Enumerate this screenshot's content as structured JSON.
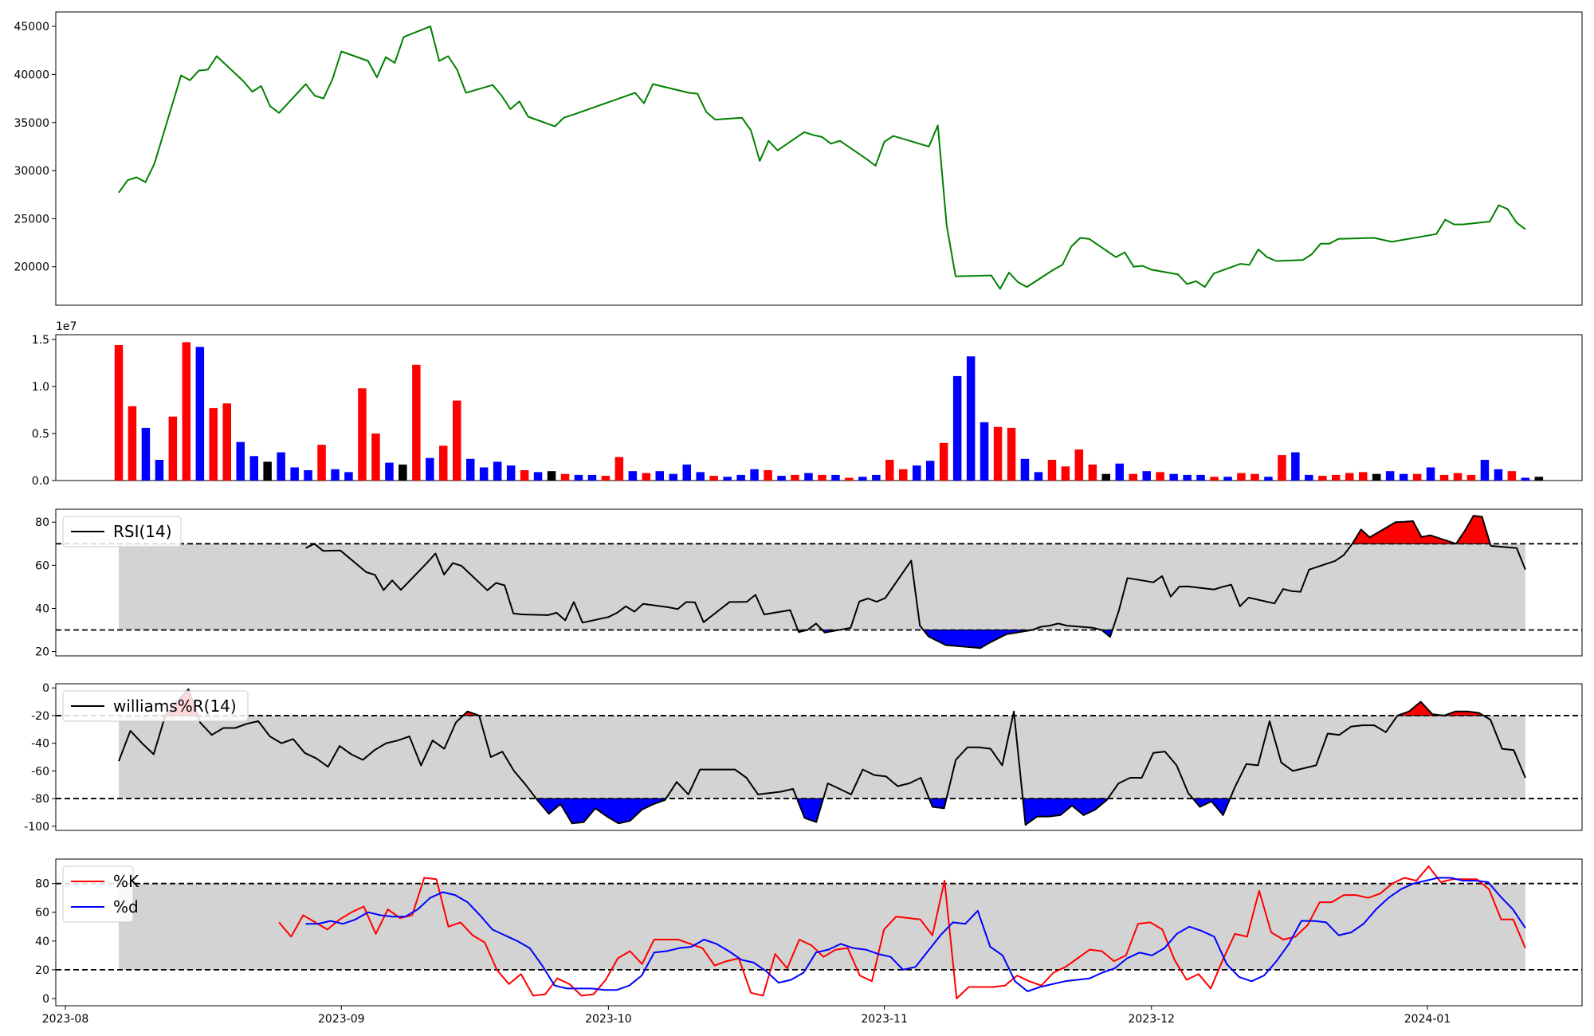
{
  "chart_data": [
    {
      "type": "line",
      "series": [
        {
          "color": "#008000",
          "x": [
            "2023-08-07",
            "2023-08-08",
            "2023-08-09",
            "2023-08-10",
            "2023-08-11",
            "2023-08-14",
            "2023-08-15",
            "2023-08-16",
            "2023-08-17",
            "2023-08-18",
            "2023-08-21",
            "2023-08-22",
            "2023-08-23",
            "2023-08-24",
            "2023-08-25",
            "2023-08-28",
            "2023-08-29",
            "2023-08-30",
            "2023-08-31",
            "2023-09-01",
            "2023-09-04",
            "2023-09-05",
            "2023-09-06",
            "2023-09-07",
            "2023-09-08",
            "2023-09-11",
            "2023-09-12",
            "2023-09-13",
            "2023-09-14",
            "2023-09-15",
            "2023-09-18",
            "2023-09-19",
            "2023-09-20",
            "2023-09-21",
            "2023-09-22",
            "2023-09-25",
            "2023-09-26",
            "2023-09-27",
            "2023-10-04",
            "2023-10-05",
            "2023-10-06",
            "2023-10-10",
            "2023-10-11",
            "2023-10-12",
            "2023-10-13",
            "2023-10-16",
            "2023-10-17",
            "2023-10-18",
            "2023-10-19",
            "2023-10-20",
            "2023-10-23",
            "2023-10-24",
            "2023-10-25",
            "2023-10-26",
            "2023-10-27",
            "2023-10-30",
            "2023-10-31",
            "2023-11-01",
            "2023-11-02",
            "2023-11-06",
            "2023-11-07",
            "2023-11-08",
            "2023-11-09",
            "2023-11-13",
            "2023-11-14",
            "2023-11-15",
            "2023-11-16",
            "2023-11-17",
            "2023-11-20",
            "2023-11-21",
            "2023-11-22",
            "2023-11-23",
            "2023-11-24",
            "2023-11-27",
            "2023-11-28",
            "2023-11-29",
            "2023-11-30",
            "2023-12-01",
            "2023-12-04",
            "2023-12-05",
            "2023-12-06",
            "2023-12-07",
            "2023-12-08",
            "2023-12-11",
            "2023-12-12",
            "2023-12-13",
            "2023-12-14",
            "2023-12-15",
            "2023-12-18",
            "2023-12-19",
            "2023-12-20",
            "2023-12-21",
            "2023-12-22",
            "2023-12-26",
            "2023-12-27",
            "2023-12-28",
            "2024-01-02",
            "2024-01-03",
            "2024-01-04",
            "2024-01-05",
            "2024-01-08",
            "2024-01-09",
            "2024-01-10",
            "2024-01-11",
            "2024-01-12"
          ],
          "values": [
            27700,
            29000,
            29300,
            28800,
            30700,
            39900,
            39400,
            40400,
            40500,
            41900,
            39300,
            38200,
            38800,
            36700,
            36000,
            39000,
            37800,
            37500,
            39500,
            42400,
            41400,
            39700,
            41800,
            41200,
            43900,
            45000,
            41400,
            41900,
            40500,
            38100,
            38900,
            37800,
            36400,
            37200,
            35600,
            34600,
            35500,
            35800,
            38100,
            37000,
            39000,
            38100,
            38000,
            36100,
            35300,
            35500,
            34200,
            31000,
            33100,
            32100,
            34000,
            33700,
            33500,
            32800,
            33100,
            31200,
            30500,
            33000,
            33600,
            32500,
            34700,
            24300,
            19000,
            19100,
            17700,
            19400,
            18400,
            17900,
            19700,
            20200,
            22100,
            23000,
            22900,
            21000,
            21500,
            20000,
            20100,
            19700,
            19200,
            18200,
            18500,
            17900,
            19300,
            20300,
            20200,
            21800,
            21000,
            20600,
            20700,
            21300,
            22400,
            22400,
            22900,
            23000,
            22800,
            22600,
            23400,
            24900,
            24400,
            24400,
            24700,
            26400,
            26000,
            24600,
            23900
          ]
        }
      ],
      "ylim": [
        16000,
        46500
      ],
      "yticks": [
        "20000",
        "25000",
        "30000",
        "35000",
        "40000",
        "45000"
      ],
      "grid": false
    },
    {
      "type": "bar",
      "x_start": "2023-08-07",
      "count": 105,
      "values_1e7": [
        1.44,
        0.79,
        0.56,
        0.22,
        0.68,
        1.47,
        1.42,
        0.77,
        0.82,
        0.41,
        0.26,
        0.2,
        0.3,
        0.14,
        0.11,
        0.38,
        0.12,
        0.09,
        0.98,
        0.5,
        0.19,
        0.17,
        1.23,
        0.24,
        0.37,
        0.85,
        0.23,
        0.14,
        0.2,
        0.16,
        0.11,
        0.09,
        0.1,
        0.07,
        0.06,
        0.06,
        0.05,
        0.25,
        0.1,
        0.08,
        0.1,
        0.07,
        0.17,
        0.09,
        0.05,
        0.04,
        0.06,
        0.12,
        0.11,
        0.05,
        0.06,
        0.08,
        0.06,
        0.06,
        0.03,
        0.04,
        0.06,
        0.22,
        0.12,
        0.16,
        0.21,
        0.4,
        1.11,
        1.32,
        0.62,
        0.57,
        0.56,
        0.23,
        0.09,
        0.22,
        0.15,
        0.33,
        0.17,
        0.07,
        0.18,
        0.07,
        0.1,
        0.09,
        0.07,
        0.06,
        0.06,
        0.04,
        0.04,
        0.08,
        0.07,
        0.04,
        0.27,
        0.3,
        0.06,
        0.05,
        0.06,
        0.08,
        0.09,
        0.07,
        0.1,
        0.07,
        0.07,
        0.14,
        0.06,
        0.08,
        0.06,
        0.22,
        0.12,
        0.1,
        0.03,
        0.04
      ],
      "colors": [
        "red",
        "red",
        "blue",
        "blue",
        "red",
        "red",
        "blue",
        "red",
        "red",
        "blue",
        "blue",
        "black",
        "blue",
        "blue",
        "blue",
        "red",
        "blue",
        "blue",
        "red",
        "red",
        "blue",
        "black",
        "red",
        "blue",
        "red",
        "red",
        "blue",
        "blue",
        "blue",
        "blue",
        "red",
        "blue",
        "black",
        "red",
        "blue",
        "blue",
        "red",
        "red",
        "blue",
        "red",
        "blue",
        "blue",
        "blue",
        "blue",
        "red",
        "blue",
        "blue",
        "blue",
        "red",
        "blue",
        "red",
        "blue",
        "red",
        "blue",
        "red",
        "blue",
        "blue",
        "red",
        "red",
        "blue",
        "blue",
        "red",
        "blue",
        "blue",
        "blue",
        "red",
        "red",
        "blue",
        "blue",
        "red",
        "red",
        "red",
        "red",
        "black",
        "blue",
        "red",
        "blue",
        "red",
        "blue",
        "blue",
        "blue",
        "red",
        "blue",
        "red",
        "red",
        "blue",
        "red",
        "blue",
        "blue",
        "red",
        "red",
        "red",
        "red",
        "black",
        "blue",
        "blue",
        "red",
        "blue",
        "red",
        "red",
        "red",
        "blue",
        "blue",
        "red",
        "blue"
      ],
      "offset_text": "1e7",
      "ylim": [
        0,
        1.55
      ],
      "yticks": [
        "0.0",
        "0.5",
        "1.0",
        "1.5"
      ]
    },
    {
      "type": "line",
      "legend": [
        "RSI(14)"
      ],
      "legend_position": "upper-left",
      "band": [
        30,
        70
      ],
      "ylim": [
        18,
        86
      ],
      "yticks": [
        "20",
        "40",
        "60",
        "80"
      ],
      "x_start": "2023-08-28",
      "values": [
        68,
        70,
        66.7,
        66.8,
        66.9,
        56.8,
        55.6,
        48.5,
        53,
        48.6,
        61,
        65.5,
        55.7,
        61,
        59.8,
        48.4,
        51.8,
        50.7,
        37.7,
        37.2,
        36.9,
        38,
        34.5,
        43,
        33.4,
        36,
        38,
        41,
        38.5,
        42.1,
        40.5,
        39.7,
        43,
        42.8,
        33.6,
        43,
        43,
        43.1,
        46.3,
        37.2,
        39.2,
        29,
        30,
        33,
        28.8,
        31,
        43.2,
        44.6,
        43.1,
        44.8,
        62.2,
        32,
        27,
        25,
        23,
        22,
        21.6,
        24,
        26,
        28,
        30,
        31.5,
        32,
        33,
        32,
        31,
        30,
        26.8,
        38.9,
        54.1,
        52.1,
        55,
        45.5,
        50.1,
        50.2,
        48.8,
        50,
        51,
        41,
        45,
        42.3,
        49,
        48,
        47.7,
        58,
        62,
        64.7,
        70,
        76.6,
        73,
        80,
        80.2,
        80.5,
        73.1,
        73.9,
        70,
        76,
        83,
        82.5,
        69,
        68,
        58
      ]
    },
    {
      "type": "line",
      "legend": [
        "williams%R(14)"
      ],
      "legend_position": "upper-left",
      "band": [
        -80,
        -20
      ],
      "ylim": [
        -103,
        3
      ],
      "yticks": [
        "-100",
        "-80",
        "-60",
        "-40",
        "-20",
        "0"
      ],
      "x_start": "2023-08-07",
      "values": [
        -53,
        -31,
        -40,
        -48,
        -20,
        -10,
        -1,
        -25,
        -34,
        -29,
        -29,
        -26,
        -24,
        -35,
        -40,
        -37,
        -47,
        -51,
        -57,
        -42,
        -48,
        -52,
        -45,
        -40,
        -38,
        -35,
        -56,
        -38,
        -44,
        -25,
        -17,
        -20,
        -50,
        -46,
        -60,
        -70,
        -81,
        -91,
        -84,
        -98,
        -97,
        -87,
        -93,
        -98,
        -96,
        -88,
        -84,
        -81,
        -68,
        -77,
        -59,
        -59,
        -59,
        -59,
        -65,
        -77,
        -76,
        -75,
        -73,
        -94,
        -97,
        -69,
        -73,
        -77,
        -59,
        -63,
        -64,
        -71,
        -69,
        -65,
        -86,
        -87,
        -52,
        -43,
        -43,
        -44,
        -56,
        -17,
        -99,
        -93,
        -93,
        -92,
        -85,
        -92,
        -88,
        -81,
        -69,
        -65,
        -65,
        -47,
        -46,
        -56,
        -76,
        -86,
        -82,
        -92,
        -72,
        -55,
        -56,
        -24,
        -54,
        -60,
        -58,
        -56,
        -33,
        -34,
        -28,
        -27,
        -27,
        -32,
        -20,
        -17,
        -10,
        -19,
        -20,
        -17,
        -17,
        -18,
        -23,
        -44,
        -45,
        -65
      ]
    },
    {
      "type": "line",
      "legend": [
        "%K",
        "%d"
      ],
      "legend_position": "upper-left",
      "band": [
        20,
        80
      ],
      "ylim": [
        -5,
        97
      ],
      "yticks": [
        "0",
        "20",
        "40",
        "60",
        "80"
      ],
      "xticks": [
        "2023-08",
        "2023-09",
        "2023-10",
        "2023-11",
        "2023-12",
        "2024-01"
      ],
      "series": [
        {
          "name": "%K",
          "color": "#ff0000",
          "x_start": "2023-08-25",
          "values": [
            53,
            43,
            58,
            53,
            48,
            55,
            60,
            64,
            45,
            62,
            56,
            58,
            84,
            83,
            50,
            53,
            44,
            39,
            20,
            10,
            17,
            2,
            3,
            14,
            10,
            2,
            3,
            13,
            28,
            33,
            24,
            41,
            41,
            41,
            38,
            35,
            23,
            26,
            28,
            4,
            2,
            31,
            21,
            41,
            37,
            29,
            34,
            35,
            16,
            12,
            48,
            57,
            56,
            55,
            44,
            82,
            0,
            8,
            8,
            8,
            9,
            16,
            12,
            9,
            18,
            22,
            28,
            34,
            33,
            26,
            30,
            52,
            53,
            48,
            27,
            13,
            17,
            7,
            27,
            45,
            43,
            75,
            46,
            41,
            43,
            51,
            67,
            67,
            72,
            72,
            70,
            73,
            80,
            84,
            82,
            92,
            81,
            83,
            83,
            83,
            76,
            55,
            55,
            35
          ]
        },
        {
          "name": "%d",
          "color": "#0000ff",
          "x_start": "2023-08-28",
          "values": [
            52,
            52,
            54,
            52,
            55,
            60,
            58,
            57,
            57,
            62,
            70,
            74,
            72,
            67,
            58,
            48,
            44,
            40,
            35,
            23,
            9,
            7,
            7,
            7,
            6,
            6,
            9,
            16,
            32,
            33,
            35,
            36,
            41,
            38,
            33,
            27,
            25,
            19,
            11,
            13,
            18,
            32,
            34,
            38,
            35,
            34,
            31,
            29,
            20,
            22,
            33,
            44,
            53,
            52,
            61,
            36,
            30,
            12,
            5,
            8,
            10,
            12,
            13,
            14,
            18,
            21,
            28,
            32,
            30,
            35,
            45,
            50,
            47,
            43,
            24,
            15,
            12,
            16,
            26,
            38,
            54,
            54,
            53,
            44,
            46,
            52,
            62,
            70,
            76,
            80,
            82,
            84,
            84,
            82,
            82,
            81,
            71,
            62,
            49
          ]
        }
      ]
    }
  ]
}
